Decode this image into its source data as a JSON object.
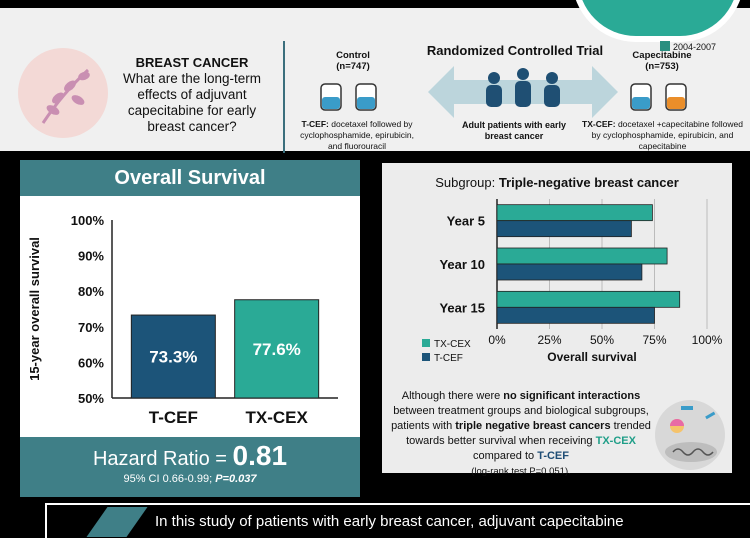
{
  "header": {
    "question_title": "BREAST CANCER",
    "question_text": "What are the long-term effects of adjuvant capecitabine for early breast cancer?",
    "trial_label": "Randomized Controlled Trial",
    "years": "2004-2007",
    "control_label": "Control",
    "control_n": "(n=747)",
    "control_regimen_bold": "T-CEF:",
    "control_regimen": " docetaxel followed by cyclophosphamide, epirubicin, and fluorouracil",
    "cape_label": "Capecitabine",
    "cape_n": "(n=753)",
    "cape_regimen_bold": "TX-CEF:",
    "cape_regimen": " docetaxel +capecitabine followed by cyclophosphamide, epirubicin, and capecitabine",
    "population": "Adult patients with early breast cancer"
  },
  "colors": {
    "tcef": "#1c5479",
    "txcex": "#2aaa96",
    "panel_head": "#3f7f87"
  },
  "chart_data": [
    {
      "type": "bar",
      "title": "Overall Survival",
      "ylabel": "15-year overall survival",
      "categories": [
        "T-CEF",
        "TX-CEX"
      ],
      "values": [
        73.3,
        77.6
      ],
      "value_labels": [
        "73.3%",
        "77.6%"
      ],
      "ylim": [
        50,
        100
      ],
      "yticks": [
        "50%",
        "60%",
        "70%",
        "80%",
        "90%",
        "100%"
      ],
      "hazard_ratio_label": "Hazard Ratio =",
      "hazard_ratio": "0.81",
      "ci_text": "95% CI  0.66-0.99;",
      "p_text": "P=0.037"
    },
    {
      "type": "bar",
      "orientation": "horizontal",
      "title_prefix": "Subgroup: ",
      "title": "Triple-negative breast cancer",
      "xlabel": "Overall survival",
      "categories": [
        "Year 5",
        "Year 10",
        "Year 15"
      ],
      "series": [
        {
          "name": "TX-CEX",
          "values": [
            74,
            81,
            87
          ]
        },
        {
          "name": "T-CEF",
          "values": [
            64,
            69,
            75
          ]
        }
      ],
      "xlim": [
        0,
        100
      ],
      "xticks": [
        "0%",
        "25%",
        "50%",
        "75%",
        "100%"
      ],
      "grid": true,
      "legend": "bottom-left"
    }
  ],
  "note": {
    "p1": "Although there were ",
    "b1": "no significant interactions",
    "p2": " between treatment groups and biological subgroups, patients with ",
    "b2": "triple negative breast cancers",
    "p3": " trended towards better survival when receiving ",
    "b3": "TX-CEX",
    "p4": " compared to ",
    "b4": "T-CEF",
    "log_rank": "(log-rank test P=0.051)."
  },
  "footer": {
    "text": "In this study of patients with early breast cancer, adjuvant capecitabine"
  }
}
